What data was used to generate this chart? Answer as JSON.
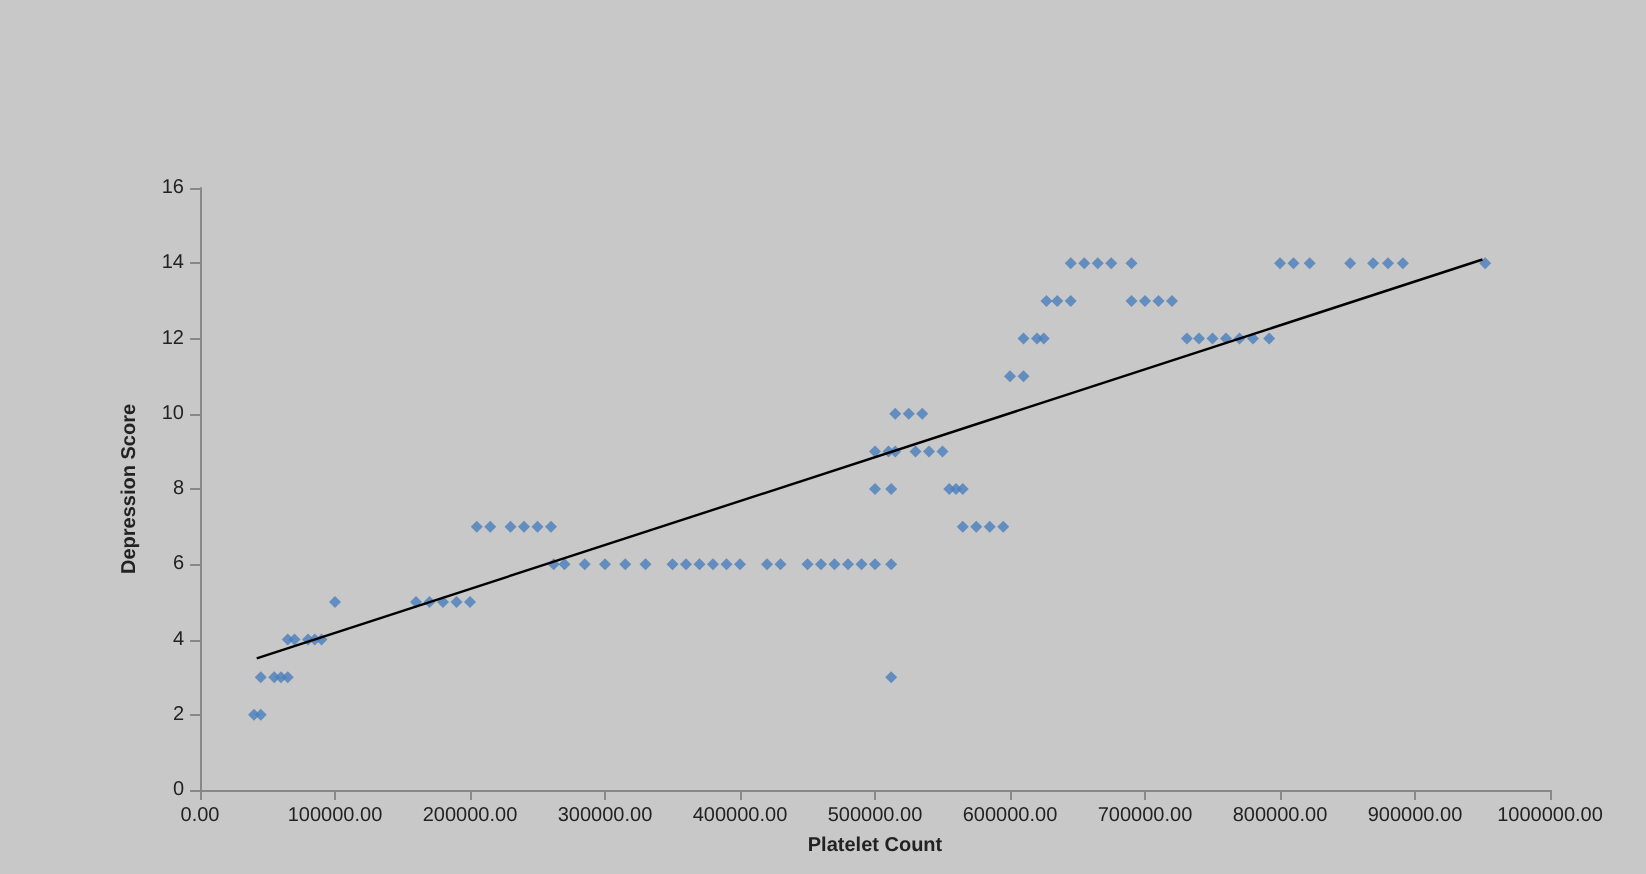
{
  "chart_data": {
    "type": "scatter",
    "xlabel": "Platelet Count",
    "ylabel": "Depression Score",
    "xlim": [
      0,
      1000000
    ],
    "ylim": [
      0,
      16
    ],
    "xticks": [
      {
        "value": 0,
        "label": "0.00"
      },
      {
        "value": 100000,
        "label": "100000.00"
      },
      {
        "value": 200000,
        "label": "200000.00"
      },
      {
        "value": 300000,
        "label": "300000.00"
      },
      {
        "value": 400000,
        "label": "400000.00"
      },
      {
        "value": 500000,
        "label": "500000.00"
      },
      {
        "value": 600000,
        "label": "600000.00"
      },
      {
        "value": 700000,
        "label": "700000.00"
      },
      {
        "value": 800000,
        "label": "800000.00"
      },
      {
        "value": 900000,
        "label": "900000.00"
      },
      {
        "value": 1000000,
        "label": "1000000.00"
      }
    ],
    "yticks": [
      0,
      2,
      4,
      6,
      8,
      10,
      12,
      14,
      16
    ],
    "grid": false,
    "marker": "diamond",
    "series": [
      {
        "color": "#4a7ebb",
        "x": [
          40000,
          45000,
          45000,
          55000,
          60000,
          65000,
          65000,
          70000,
          80000,
          85000,
          90000,
          100000,
          160000,
          170000,
          180000,
          190000,
          200000,
          205000,
          215000,
          230000,
          240000,
          250000,
          260000,
          262000,
          270000,
          285000,
          300000,
          315000,
          330000,
          350000,
          360000,
          370000,
          380000,
          390000,
          400000,
          420000,
          430000,
          450000,
          460000,
          470000,
          480000,
          490000,
          500000,
          512000,
          512000,
          500000,
          512000,
          555000,
          560000,
          565000,
          500000,
          510000,
          515000,
          530000,
          540000,
          550000,
          515000,
          525000,
          535000,
          565000,
          575000,
          585000,
          595000,
          600000,
          610000,
          610000,
          620000,
          625000,
          627000,
          635000,
          645000,
          690000,
          700000,
          710000,
          720000,
          645000,
          655000,
          665000,
          675000,
          690000,
          800000,
          810000,
          822000,
          852000,
          869000,
          880000,
          891000,
          952000,
          731000,
          740000,
          750000,
          760000,
          770000,
          780000,
          792000
        ],
        "values": [
          2,
          2,
          3,
          3,
          3,
          3,
          4,
          4,
          4,
          4,
          4,
          5,
          5,
          5,
          5,
          5,
          5,
          7,
          7,
          7,
          7,
          7,
          7,
          6,
          6,
          6,
          6,
          6,
          6,
          6,
          6,
          6,
          6,
          6,
          6,
          6,
          6,
          6,
          6,
          6,
          6,
          6,
          6,
          6,
          3,
          8,
          8,
          8,
          8,
          8,
          9,
          9,
          9,
          9,
          9,
          9,
          10,
          10,
          10,
          7,
          7,
          7,
          7,
          11,
          11,
          12,
          12,
          12,
          13,
          13,
          13,
          13,
          13,
          13,
          13,
          14,
          14,
          14,
          14,
          14,
          14,
          14,
          14,
          14,
          14,
          14,
          14,
          14,
          12,
          12,
          12,
          12,
          12,
          12,
          12
        ]
      },
      {
        "type": "line",
        "color": "#000000",
        "x": [
          42000,
          950000
        ],
        "values": [
          3.5,
          14.1
        ],
        "marker": "none"
      }
    ]
  }
}
